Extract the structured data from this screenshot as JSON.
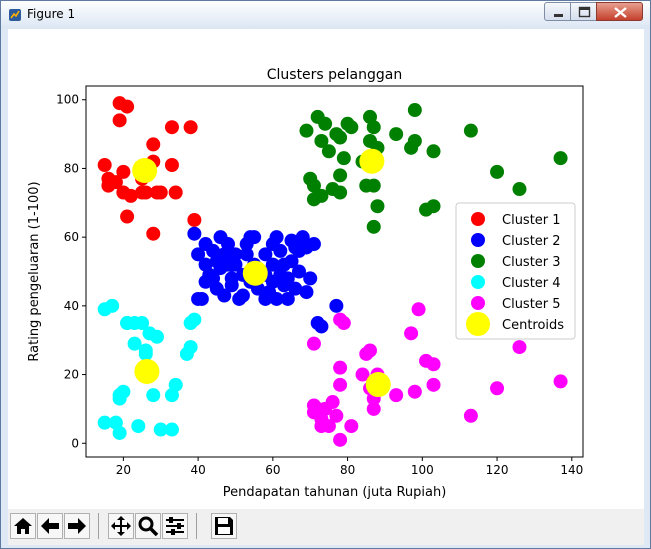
{
  "window": {
    "title": "Figure 1"
  },
  "toolbar": {
    "buttons": [
      "home-button",
      "back-button",
      "forward-button",
      "pan-button",
      "zoom-button",
      "configure-subplots-button",
      "save-button"
    ]
  },
  "chart_data": {
    "type": "scatter",
    "title": "Clusters pelanggan",
    "xlabel": "Pendapatan tahunan (juta Rupiah)",
    "ylabel": "Rating pengeluaran (1-100)",
    "xlim": [
      10,
      143
    ],
    "ylim": [
      -4,
      104
    ],
    "xticks": [
      20,
      40,
      60,
      80,
      100,
      120,
      140
    ],
    "yticks": [
      0,
      20,
      40,
      60,
      80,
      100
    ],
    "legend_position": "right",
    "series": [
      {
        "name": "Cluster 1",
        "color": "#ff0000",
        "points": [
          [
            19,
            99
          ],
          [
            21,
            98
          ],
          [
            19,
            94
          ],
          [
            15,
            81
          ],
          [
            16,
            77
          ],
          [
            18,
            76
          ],
          [
            20,
            79
          ],
          [
            22,
            72
          ],
          [
            16,
            75
          ],
          [
            20,
            73
          ],
          [
            25,
            73
          ],
          [
            26,
            73
          ],
          [
            28,
            82
          ],
          [
            28,
            87
          ],
          [
            29,
            73
          ],
          [
            30,
            73
          ],
          [
            33,
            92
          ],
          [
            33,
            81
          ],
          [
            34,
            73
          ],
          [
            38,
            92
          ],
          [
            21,
            66
          ],
          [
            28,
            61
          ],
          [
            39,
            65
          ],
          [
            25,
            77
          ]
        ]
      },
      {
        "name": "Cluster 2",
        "color": "#0000ff",
        "points": [
          [
            39,
            61
          ],
          [
            40,
            55
          ],
          [
            41,
            42
          ],
          [
            42,
            52
          ],
          [
            42,
            47
          ],
          [
            43,
            49
          ],
          [
            44,
            56
          ],
          [
            45,
            45
          ],
          [
            46,
            51
          ],
          [
            47,
            55
          ],
          [
            48,
            58
          ],
          [
            48,
            52
          ],
          [
            49,
            48
          ],
          [
            49,
            46
          ],
          [
            50,
            52
          ],
          [
            50,
            55
          ],
          [
            51,
            42
          ],
          [
            52,
            49
          ],
          [
            53,
            58
          ],
          [
            54,
            47
          ],
          [
            54,
            60
          ],
          [
            55,
            52
          ],
          [
            56,
            45
          ],
          [
            57,
            50
          ],
          [
            58,
            42
          ],
          [
            58,
            55
          ],
          [
            59,
            44
          ],
          [
            60,
            47
          ],
          [
            60,
            52
          ],
          [
            61,
            60
          ],
          [
            61,
            42
          ],
          [
            62,
            49
          ],
          [
            62,
            56
          ],
          [
            63,
            46
          ],
          [
            63,
            52
          ],
          [
            64,
            48
          ],
          [
            65,
            53
          ],
          [
            65,
            59
          ],
          [
            66,
            45
          ],
          [
            67,
            50
          ],
          [
            67,
            56
          ],
          [
            68,
            60
          ],
          [
            69,
            57
          ],
          [
            69,
            44
          ],
          [
            70,
            48
          ],
          [
            71,
            58
          ],
          [
            72,
            35
          ],
          [
            73,
            34
          ],
          [
            77,
            40
          ],
          [
            46,
            60
          ],
          [
            40,
            42
          ],
          [
            42,
            58
          ],
          [
            44,
            48
          ],
          [
            52,
            43
          ],
          [
            55,
            60
          ],
          [
            60,
            58
          ],
          [
            64,
            42
          ],
          [
            66,
            57
          ],
          [
            53,
            55
          ],
          [
            58,
            49
          ],
          [
            47,
            43
          ],
          [
            45,
            53
          ],
          [
            49,
            52
          ]
        ]
      },
      {
        "name": "Cluster 3",
        "color": "#008000",
        "points": [
          [
            69,
            91
          ],
          [
            70,
            77
          ],
          [
            71,
            75
          ],
          [
            71,
            71
          ],
          [
            72,
            95
          ],
          [
            73,
            72
          ],
          [
            73,
            88
          ],
          [
            74,
            93
          ],
          [
            75,
            85
          ],
          [
            76,
            74
          ],
          [
            77,
            90
          ],
          [
            78,
            89
          ],
          [
            78,
            78
          ],
          [
            79,
            83
          ],
          [
            80,
            93
          ],
          [
            81,
            92
          ],
          [
            85,
            75
          ],
          [
            86,
            95
          ],
          [
            87,
            92
          ],
          [
            87,
            75
          ],
          [
            87,
            63
          ],
          [
            88,
            86
          ],
          [
            88,
            69
          ],
          [
            93,
            90
          ],
          [
            97,
            86
          ],
          [
            98,
            88
          ],
          [
            98,
            97
          ],
          [
            101,
            68
          ],
          [
            103,
            69
          ],
          [
            103,
            85
          ],
          [
            113,
            91
          ],
          [
            120,
            79
          ],
          [
            126,
            74
          ],
          [
            137,
            83
          ],
          [
            78,
            73
          ],
          [
            86,
            88
          ],
          [
            84,
            82
          ]
        ]
      },
      {
        "name": "Cluster 4",
        "color": "#00ffff",
        "points": [
          [
            15,
            39
          ],
          [
            15,
            6
          ],
          [
            17,
            40
          ],
          [
            18,
            6
          ],
          [
            19,
            3
          ],
          [
            19,
            14
          ],
          [
            20,
            15
          ],
          [
            21,
            35
          ],
          [
            23,
            29
          ],
          [
            23,
            35
          ],
          [
            24,
            5
          ],
          [
            25,
            35
          ],
          [
            26,
            26
          ],
          [
            27,
            32
          ],
          [
            28,
            14
          ],
          [
            29,
            31
          ],
          [
            30,
            4
          ],
          [
            33,
            4
          ],
          [
            33,
            14
          ],
          [
            34,
            17
          ],
          [
            37,
            26
          ],
          [
            38,
            28
          ],
          [
            38,
            35
          ],
          [
            39,
            36
          ],
          [
            19,
            13
          ],
          [
            21,
            35
          ],
          [
            26,
            27
          ]
        ]
      },
      {
        "name": "Cluster 5",
        "color": "#ff00ff",
        "points": [
          [
            71,
            29
          ],
          [
            71,
            11
          ],
          [
            71,
            9
          ],
          [
            72,
            10
          ],
          [
            73,
            5
          ],
          [
            73,
            7
          ],
          [
            74,
            10
          ],
          [
            75,
            5
          ],
          [
            76,
            12
          ],
          [
            77,
            8
          ],
          [
            78,
            17
          ],
          [
            78,
            22
          ],
          [
            78,
            1
          ],
          [
            79,
            35
          ],
          [
            81,
            5
          ],
          [
            84,
            20
          ],
          [
            85,
            26
          ],
          [
            86,
            27
          ],
          [
            87,
            13
          ],
          [
            87,
            10
          ],
          [
            88,
            20
          ],
          [
            93,
            14
          ],
          [
            97,
            32
          ],
          [
            98,
            15
          ],
          [
            99,
            39
          ],
          [
            101,
            24
          ],
          [
            103,
            23
          ],
          [
            103,
            17
          ],
          [
            113,
            8
          ],
          [
            120,
            16
          ],
          [
            126,
            28
          ],
          [
            137,
            18
          ],
          [
            78,
            36
          ],
          [
            86,
            16
          ],
          [
            88,
            16
          ]
        ]
      },
      {
        "name": "Centroids",
        "color": "#ffff00",
        "points": [
          [
            25.7,
            79.4
          ],
          [
            55.3,
            49.5
          ],
          [
            86.5,
            82.1
          ],
          [
            26.3,
            20.9
          ],
          [
            88.2,
            17.1
          ]
        ]
      }
    ]
  }
}
